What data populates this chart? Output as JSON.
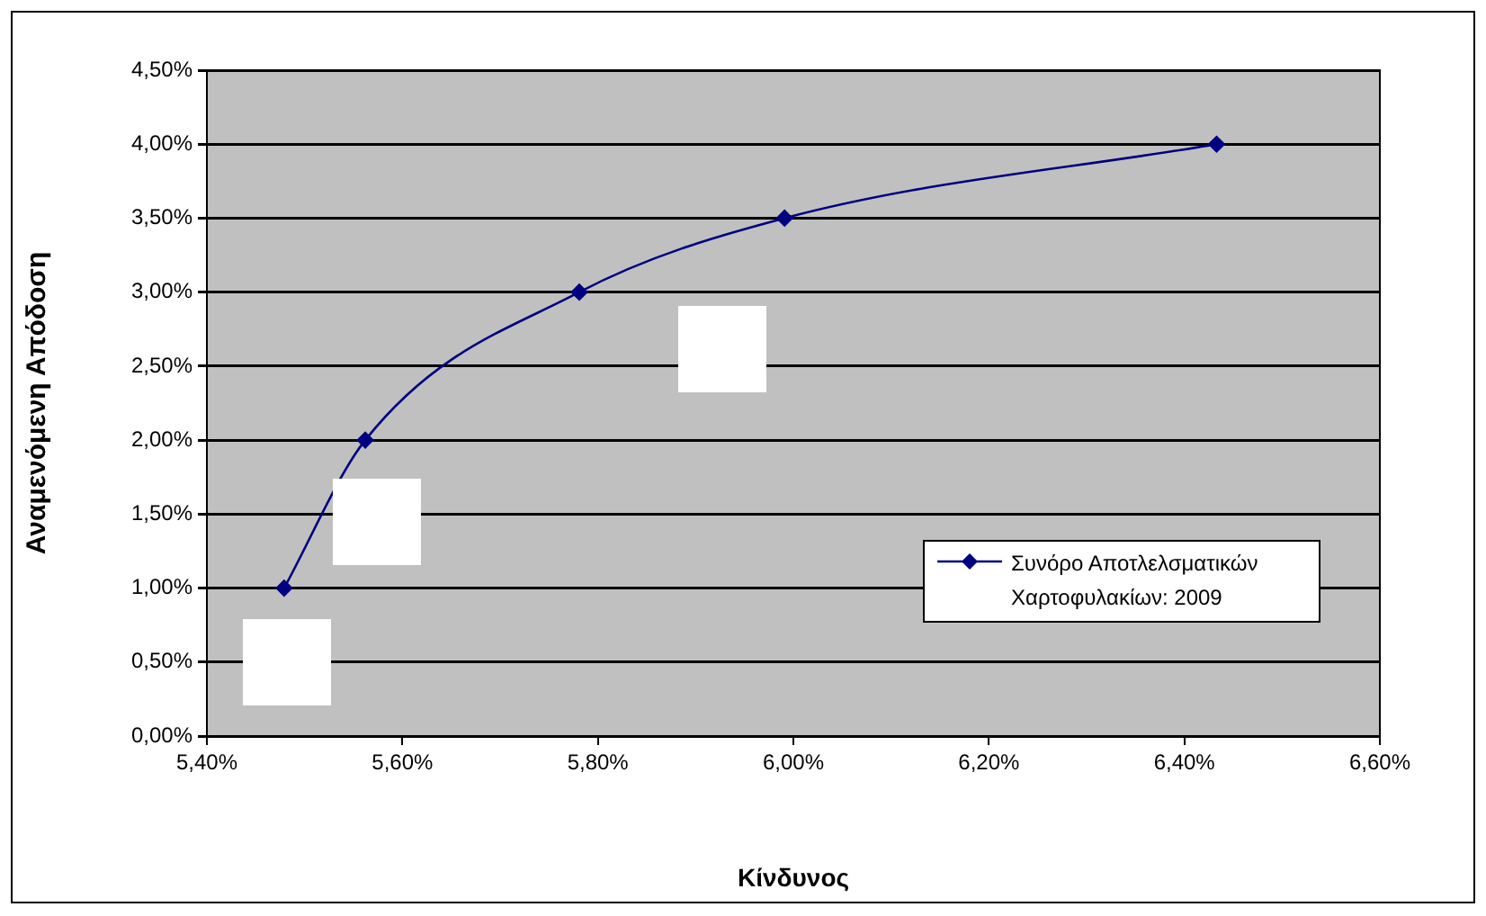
{
  "chart_data": {
    "type": "line",
    "xlabel": "Κίνδυνος",
    "ylabel": "Αναμενόμενη Απόδοση",
    "series": [
      {
        "name": "Συνόρο Αποτλελσματικών Χαρτοφυλακίων: 2009",
        "color": "#000080",
        "x": [
          5.479,
          5.562,
          5.781,
          5.991,
          6.433
        ],
        "values": [
          1.0,
          2.0,
          3.0,
          3.5,
          4.0
        ]
      }
    ],
    "xlim": [
      5.4,
      6.6
    ],
    "xticks": [
      {
        "value": 5.4,
        "label": "5,40%"
      },
      {
        "value": 5.6,
        "label": "5,60%"
      },
      {
        "value": 5.8,
        "label": "5,80%"
      },
      {
        "value": 6.0,
        "label": "6,00%"
      },
      {
        "value": 6.2,
        "label": "6,20%"
      },
      {
        "value": 6.4,
        "label": "6,40%"
      },
      {
        "value": 6.6,
        "label": "6,60%"
      }
    ],
    "ylim": [
      0,
      4.5
    ],
    "yticks": [
      {
        "value": 0,
        "label": "0,00%"
      },
      {
        "value": 0.5,
        "label": "0,50%"
      },
      {
        "value": 1.0,
        "label": "1,00%"
      },
      {
        "value": 1.5,
        "label": "1,50%"
      },
      {
        "value": 2.0,
        "label": "2,00%"
      },
      {
        "value": 2.5,
        "label": "2,50%"
      },
      {
        "value": 3.0,
        "label": "3,00%"
      },
      {
        "value": 3.5,
        "label": "3,50%"
      },
      {
        "value": 4.0,
        "label": "4,00%"
      },
      {
        "value": 4.5,
        "label": "4,50%"
      }
    ],
    "grid": "y",
    "legend": "right",
    "marker": "diamond",
    "line_style": "solid"
  }
}
